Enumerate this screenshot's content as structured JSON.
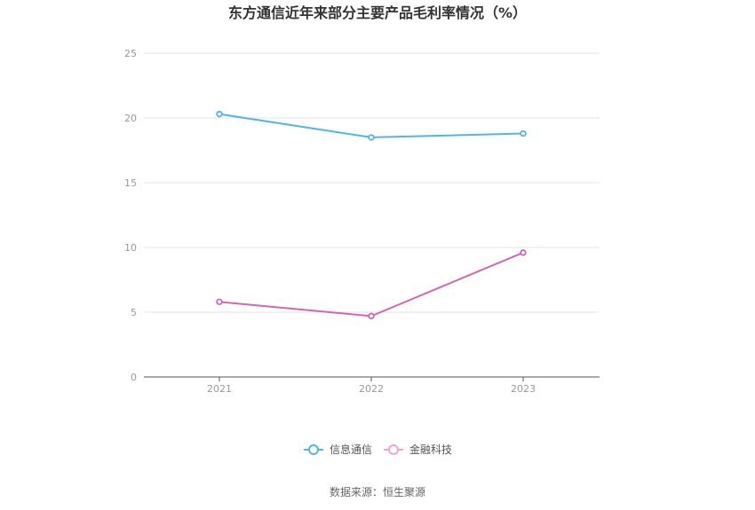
{
  "chart_data": {
    "type": "line",
    "title": "东方通信近年来部分主要产品毛利率情况（%）",
    "xlabel": "",
    "ylabel": "",
    "categories": [
      "2021",
      "2022",
      "2023"
    ],
    "ylim": [
      0,
      25
    ],
    "yticks": [
      0,
      5,
      10,
      15,
      20,
      25
    ],
    "grid": true,
    "legend_position": "bottom",
    "series": [
      {
        "name": "信息通信",
        "values": [
          20.3,
          18.5,
          18.8
        ],
        "color": "#4fb5ea"
      },
      {
        "name": "金融科技",
        "values": [
          5.8,
          4.7,
          9.6
        ],
        "color": "#d365b3"
      }
    ]
  },
  "source_text": "数据来源：恒生聚源",
  "colors": {
    "grid": "#e3e3ee",
    "axis": "#555555",
    "legend_marker_2": "#f0a4d6"
  }
}
